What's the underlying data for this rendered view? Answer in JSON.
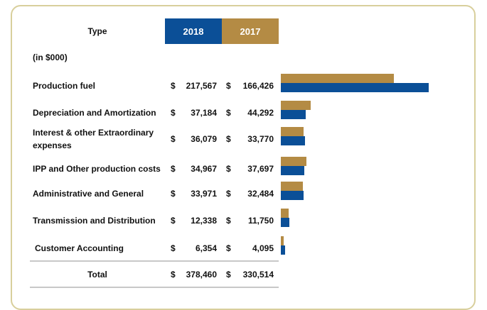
{
  "chart_data": {
    "type": "bar",
    "orientation": "horizontal",
    "header_label": "Type",
    "units_note": "(in $000)",
    "currency": "$",
    "categories": [
      "Production  fuel",
      "Depreciation and Amortization",
      "Interest & other Extraordinary expenses",
      "IPP and Other production costs",
      "Administrative and General",
      "Transmission and Distribution",
      "Customer Accounting"
    ],
    "series": [
      {
        "name": "2018",
        "color": "#0b4f97",
        "values": [
          217567,
          37184,
          36079,
          34967,
          33971,
          12338,
          6354
        ],
        "value_labels": [
          "217,567",
          "37,184",
          "36,079",
          "34,967",
          "33,971",
          "12,338",
          "6,354"
        ]
      },
      {
        "name": "2017",
        "color": "#b48b44",
        "values": [
          166426,
          44292,
          33770,
          37697,
          32484,
          11750,
          4095
        ],
        "value_labels": [
          "166,426",
          "44,292",
          "33,770",
          "37,697",
          "32,484",
          "11,750",
          "4,095"
        ]
      }
    ],
    "total_label": "Total",
    "totals": [
      378460,
      330514
    ],
    "total_labels": [
      "378,460",
      "330,514"
    ],
    "xlim": [
      0,
      220000
    ]
  }
}
